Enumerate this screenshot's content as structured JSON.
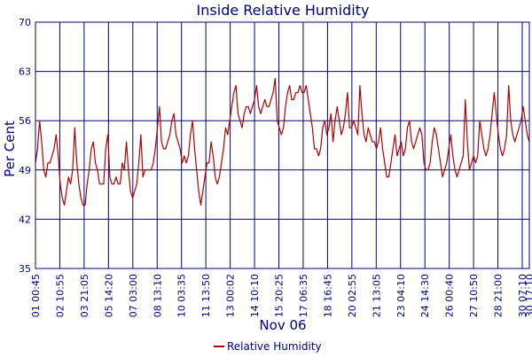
{
  "chart_data": {
    "type": "line",
    "title": "Inside Relative Humidity",
    "xlabel": "Nov 06",
    "ylabel": "Per Cent",
    "ylim": [
      35,
      70
    ],
    "yticks": [
      35,
      42,
      49,
      56,
      63,
      70
    ],
    "grid": true,
    "legend_position": "bottom-center",
    "colors": {
      "title": "#000080",
      "axis": "#000080",
      "grid": "#000080",
      "series": "#b00000",
      "background": "#ffffff"
    },
    "x_tick_labels": [
      "01 00:45",
      "02 10:55",
      "03 21:05",
      "05 14:20",
      "07 03:00",
      "08 13:10",
      "10 03:35",
      "11 13:50",
      "13 00:02",
      "14 10:10",
      "15 20:25",
      "17 06:35",
      "18 16:45",
      "20 02:55",
      "21 13:05",
      "23 04:10",
      "24 14:30",
      "26 00:40",
      "27 10:50",
      "28 21:00",
      "30 07:10",
      "30 17:10"
    ],
    "series": [
      {
        "name": "Relative Humidity",
        "values": [
          50,
          52,
          56,
          53,
          49,
          48,
          50,
          50,
          51,
          52,
          54,
          51,
          47,
          45,
          44,
          46,
          48,
          47,
          49,
          55,
          50,
          47,
          45,
          44,
          44,
          47,
          49,
          52,
          53,
          50,
          49,
          47,
          47,
          47,
          52,
          54,
          48,
          47,
          47,
          48,
          47,
          47,
          50,
          49,
          53,
          49,
          46,
          45,
          46,
          47,
          50,
          54,
          48,
          49,
          49,
          49,
          49,
          50,
          52,
          55,
          58,
          53,
          52,
          52,
          53,
          54,
          56,
          57,
          54,
          53,
          52,
          50,
          51,
          50,
          51,
          54,
          56,
          52,
          49,
          46,
          44,
          46,
          48,
          50,
          50,
          53,
          51,
          48,
          47,
          48,
          50,
          52,
          55,
          54,
          56,
          58,
          60,
          61,
          57,
          56,
          55,
          57,
          58,
          58,
          57,
          58,
          59,
          61,
          58,
          57,
          58,
          59,
          58,
          58,
          59,
          60,
          62,
          56,
          55,
          54,
          55,
          58,
          60,
          61,
          59,
          59,
          60,
          60,
          61,
          60,
          60,
          61,
          59,
          57,
          55,
          52,
          52,
          51,
          52,
          55,
          56,
          54,
          55,
          57,
          53,
          56,
          58,
          56,
          54,
          55,
          57,
          60,
          55,
          55,
          56,
          55,
          54,
          61,
          57,
          54,
          53,
          55,
          54,
          53,
          53,
          52,
          53,
          55,
          52,
          50,
          48,
          48,
          50,
          52,
          54,
          51,
          52,
          53,
          51,
          52,
          55,
          56,
          53,
          52,
          53,
          54,
          55,
          54,
          50,
          49,
          49,
          50,
          53,
          55,
          54,
          52,
          50,
          48,
          49,
          50,
          52,
          54,
          51,
          49,
          48,
          49,
          50,
          51,
          59,
          53,
          49,
          50,
          51,
          50,
          51,
          56,
          54,
          52,
          51,
          52,
          54,
          57,
          60,
          57,
          54,
          52,
          51,
          52,
          54,
          61,
          56,
          54,
          53,
          54,
          55,
          56,
          58,
          56,
          54,
          53
        ]
      }
    ]
  }
}
